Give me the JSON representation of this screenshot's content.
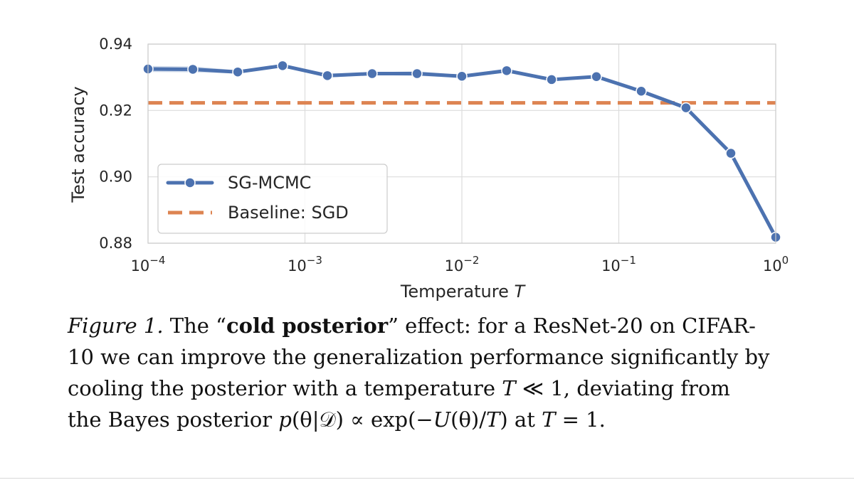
{
  "chart_data": {
    "type": "line",
    "xscale": "log",
    "xlim": [
      0.0001,
      1
    ],
    "ylim": [
      0.88,
      0.94
    ],
    "xlabel": "Temperature",
    "xlabel_var": "T",
    "ylabel": "Test accuracy",
    "yticks": [
      {
        "value": 0.88,
        "label": "0.88"
      },
      {
        "value": 0.9,
        "label": "0.90"
      },
      {
        "value": 0.92,
        "label": "0.92"
      },
      {
        "value": 0.94,
        "label": "0.94"
      }
    ],
    "xticks": [
      {
        "value": 0.0001,
        "base": "10",
        "exp": "−4"
      },
      {
        "value": 0.001,
        "base": "10",
        "exp": "−3"
      },
      {
        "value": 0.01,
        "base": "10",
        "exp": "−2"
      },
      {
        "value": 0.1,
        "base": "10",
        "exp": "−1"
      },
      {
        "value": 1,
        "base": "10",
        "exp": "0"
      }
    ],
    "grid": true,
    "legend_position": "lower-left",
    "series": [
      {
        "name": "SG-MCMC",
        "color": "#4c72b0",
        "marker": "circle",
        "x": [
          0.0001,
          0.000193,
          0.000373,
          0.00072,
          0.00139,
          0.00268,
          0.00518,
          0.01,
          0.0193,
          0.0373,
          0.072,
          0.139,
          0.268,
          0.518,
          1
        ],
        "y": [
          0.9325,
          0.9324,
          0.9316,
          0.9335,
          0.9305,
          0.9311,
          0.9311,
          0.9303,
          0.932,
          0.9293,
          0.9302,
          0.9258,
          0.9208,
          0.9071,
          0.8818
        ],
        "band": [
          0.0009,
          0.0009,
          0.0005,
          0.0005,
          0.0006,
          0.0004,
          0.0007,
          0.0004,
          0.0006,
          0.0004,
          0.0005,
          0.0004,
          0.0004,
          0.0005,
          0.0006
        ]
      },
      {
        "name": "Baseline: SGD",
        "color": "#dd8452",
        "style": "dashed",
        "y_constant": 0.9223
      }
    ]
  },
  "caption": {
    "figure_label": "Figure 1.",
    "lines": [
      {
        "p1": " The “",
        "bold": "cold posterior",
        "p2": "” effect: for a ResNet-20 on CIFAR-"
      },
      {
        "text": "10 we can improve the generalization performance significantly by"
      },
      {
        "p1": "cooling the posterior with a temperature ",
        "math1": "T",
        "p2": " ≪ 1, deviating from"
      },
      {
        "p1": "the Bayes posterior ",
        "math_p": "p",
        "math_rest": "(θ|𝒟) ∝ exp(−",
        "math_U": "U",
        "math_rest2": "(θ)/",
        "math_T": "T",
        "math_rest3": ")",
        "p2": " at ",
        "math_T2": "T",
        "p3": " = 1."
      }
    ]
  }
}
